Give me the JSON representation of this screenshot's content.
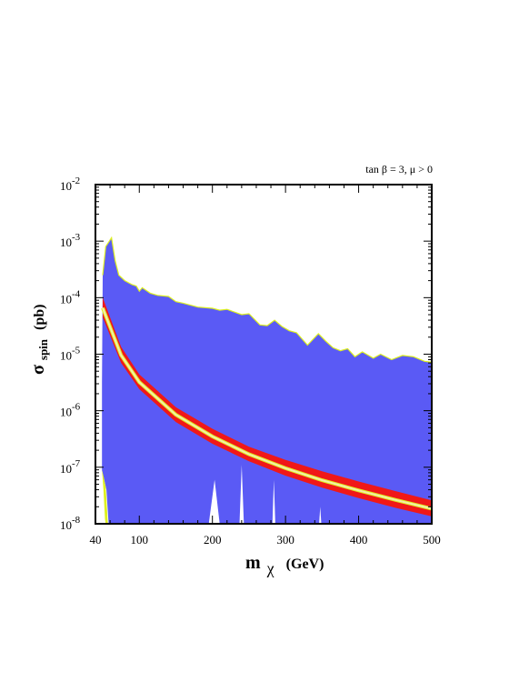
{
  "chart_data": {
    "type": "area",
    "annotation": "tan β = 3, μ > 0",
    "xlabel": {
      "main": "m",
      "sub": "χ",
      "unit": "(GeV)"
    },
    "ylabel": {
      "main": "σ",
      "sub": "spin",
      "unit": "(pb)"
    },
    "xlim": [
      40,
      500
    ],
    "ylim": [
      1e-08,
      0.01
    ],
    "yscale": "log",
    "x_ticks": [
      {
        "value": 40,
        "label": "40"
      },
      {
        "value": 100,
        "label": "100"
      },
      {
        "value": 200,
        "label": "200"
      },
      {
        "value": 300,
        "label": "300"
      },
      {
        "value": 400,
        "label": "400"
      },
      {
        "value": 500,
        "label": "500"
      }
    ],
    "y_ticks": [
      {
        "value": 1e-08,
        "base": "10",
        "exp": "-8"
      },
      {
        "value": 1e-07,
        "base": "10",
        "exp": "-7"
      },
      {
        "value": 1e-06,
        "base": "10",
        "exp": "-6"
      },
      {
        "value": 1e-05,
        "base": "10",
        "exp": "-5"
      },
      {
        "value": 0.0001,
        "base": "10",
        "exp": "-4"
      },
      {
        "value": 0.001,
        "base": "10",
        "exp": "-3"
      },
      {
        "value": 0.01,
        "base": "10",
        "exp": "-2"
      }
    ],
    "colors": {
      "blue_region": "#5a5af5",
      "yellow": "#ddf020",
      "red": "#f01818",
      "center_line": "#f2eeaa",
      "axis": "#000000"
    },
    "series": [
      {
        "role": "blue-region-upper",
        "points": [
          [
            49,
            3.2e-06
          ],
          [
            50,
            0.00025
          ],
          [
            54,
            0.0008
          ],
          [
            59,
            0.001
          ],
          [
            62,
            0.00115
          ],
          [
            67,
            0.00045
          ],
          [
            72,
            0.00025
          ],
          [
            80,
            0.0002
          ],
          [
            90,
            0.00017
          ],
          [
            96,
            0.00016
          ],
          [
            100,
            0.00013
          ],
          [
            104,
            0.00015
          ],
          [
            115,
            0.00012
          ],
          [
            125,
            0.00011
          ],
          [
            140,
            0.000105
          ],
          [
            150,
            8.5e-05
          ],
          [
            160,
            8e-05
          ],
          [
            180,
            6.8e-05
          ],
          [
            200,
            6.5e-05
          ],
          [
            210,
            6e-05
          ],
          [
            220,
            6.2e-05
          ],
          [
            240,
            5e-05
          ],
          [
            250,
            5.2e-05
          ],
          [
            265,
            3.3e-05
          ],
          [
            275,
            3.2e-05
          ],
          [
            285,
            4e-05
          ],
          [
            295,
            3.1e-05
          ],
          [
            305,
            2.6e-05
          ],
          [
            315,
            2.4e-05
          ],
          [
            330,
            1.45e-05
          ],
          [
            345,
            2.3e-05
          ],
          [
            355,
            1.7e-05
          ],
          [
            365,
            1.3e-05
          ],
          [
            375,
            1.15e-05
          ],
          [
            385,
            1.25e-05
          ],
          [
            395,
            9e-06
          ],
          [
            405,
            1.1e-05
          ],
          [
            420,
            8.5e-06
          ],
          [
            430,
            1e-05
          ],
          [
            445,
            8e-06
          ],
          [
            460,
            9.5e-06
          ],
          [
            475,
            9e-06
          ],
          [
            490,
            7.5e-06
          ],
          [
            500,
            7.2e-06
          ]
        ]
      },
      {
        "role": "blue-region-lower",
        "points": [
          [
            49,
            3.2e-06
          ],
          [
            49,
            8.8e-08
          ],
          [
            52,
            6e-08
          ],
          [
            55,
            4e-08
          ],
          [
            58,
            1e-08
          ],
          [
            500,
            1e-08
          ]
        ]
      },
      {
        "role": "white-gaps",
        "polygons": [
          [
            [
              195,
              1e-08
            ],
            [
              203,
              6e-08
            ],
            [
              210,
              1e-08
            ]
          ],
          [
            [
              237,
              1e-08
            ],
            [
              240,
              1.1e-07
            ],
            [
              243,
              1e-08
            ]
          ],
          [
            [
              282,
              1e-08
            ],
            [
              284,
              6e-08
            ],
            [
              286,
              1e-08
            ]
          ],
          [
            [
              346,
              1e-08
            ],
            [
              347.5,
              2e-08
            ],
            [
              349,
              1e-08
            ]
          ]
        ]
      },
      {
        "role": "yellow-sliver",
        "points": [
          [
            49,
            9e-08
          ],
          [
            51,
            4e-08
          ],
          [
            53,
            1.2e-08
          ],
          [
            54,
            1e-08
          ],
          [
            57,
            1e-08
          ],
          [
            54,
            4.5e-08
          ],
          [
            51,
            7e-08
          ]
        ]
      },
      {
        "role": "red-band-upper",
        "points": [
          [
            50,
            0.0001
          ],
          [
            75,
            1.35e-05
          ],
          [
            100,
            4.4e-06
          ],
          [
            150,
            1.15e-06
          ],
          [
            200,
            4.8e-07
          ],
          [
            250,
            2.3e-07
          ],
          [
            300,
            1.35e-07
          ],
          [
            350,
            8.5e-08
          ],
          [
            400,
            5.6e-08
          ],
          [
            450,
            3.8e-08
          ],
          [
            500,
            2.6e-08
          ]
        ]
      },
      {
        "role": "red-band-lower",
        "points": [
          [
            50,
            4.5e-05
          ],
          [
            75,
            7e-06
          ],
          [
            100,
            2.4e-06
          ],
          [
            150,
            6.3e-07
          ],
          [
            200,
            2.6e-07
          ],
          [
            250,
            1.28e-07
          ],
          [
            300,
            7.1e-08
          ],
          [
            350,
            4.35e-08
          ],
          [
            400,
            2.85e-08
          ],
          [
            450,
            1.92e-08
          ],
          [
            500,
            1.35e-08
          ]
        ]
      },
      {
        "role": "center-line",
        "points": [
          [
            50,
            6.6e-05
          ],
          [
            75,
            9.6e-06
          ],
          [
            100,
            3.2e-06
          ],
          [
            150,
            8.5e-07
          ],
          [
            200,
            3.5e-07
          ],
          [
            250,
            1.7e-07
          ],
          [
            300,
            9.6e-08
          ],
          [
            350,
            5.9e-08
          ],
          [
            400,
            3.9e-08
          ],
          [
            450,
            2.65e-08
          ],
          [
            500,
            1.85e-08
          ]
        ]
      }
    ]
  }
}
